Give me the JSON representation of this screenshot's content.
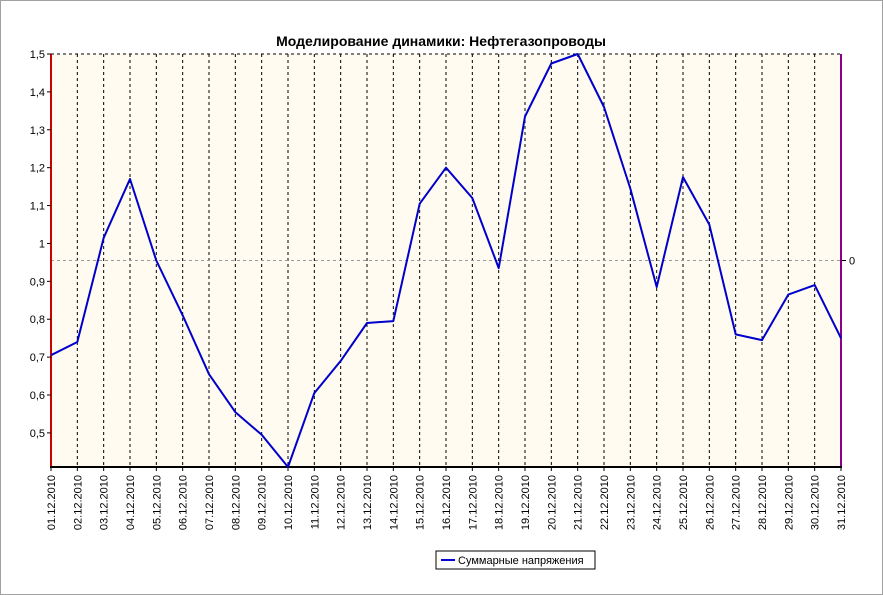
{
  "chart_data": {
    "type": "line",
    "title": "Моделирование динамики: Нефтегазопроводы",
    "xlabel": "",
    "ylabel": "",
    "ylim": [
      0.41,
      1.5
    ],
    "yticks": [
      "0,5",
      "0,6",
      "0,7",
      "0,8",
      "0,9",
      "1",
      "1,1",
      "1,2",
      "1,3",
      "1,4",
      "1,5"
    ],
    "ytick_values": [
      0.5,
      0.6,
      0.7,
      0.8,
      0.9,
      1.0,
      1.1,
      1.2,
      1.3,
      1.4,
      1.5
    ],
    "categories": [
      "01.12.2010",
      "02.12.2010",
      "03.12.2010",
      "04.12.2010",
      "05.12.2010",
      "06.12.2010",
      "07.12.2010",
      "08.12.2010",
      "09.12.2010",
      "10.12.2010",
      "11.12.2010",
      "12.12.2010",
      "13.12.2010",
      "14.12.2010",
      "15.12.2010",
      "16.12.2010",
      "17.12.2010",
      "18.12.2010",
      "19.12.2010",
      "20.12.2010",
      "21.12.2010",
      "22.12.2010",
      "23.12.2010",
      "24.12.2010",
      "25.12.2010",
      "26.12.2010",
      "27.12.2010",
      "28.12.2010",
      "29.12.2010",
      "30.12.2010",
      "31.12.2010"
    ],
    "series": [
      {
        "name": "Суммарные напряжения",
        "color": "#0000cc",
        "values": [
          0.705,
          0.74,
          1.015,
          1.17,
          0.955,
          0.81,
          0.655,
          0.555,
          0.495,
          0.41,
          0.605,
          0.69,
          0.79,
          0.795,
          1.105,
          1.2,
          1.12,
          0.935,
          1.335,
          1.475,
          1.5,
          1.36,
          1.145,
          0.885,
          1.175,
          1.05,
          0.76,
          0.745,
          0.865,
          0.89,
          0.75
        ]
      }
    ],
    "reference_line": {
      "value": 0.955,
      "label": "0"
    },
    "grid": true,
    "legend": "bottom-center",
    "colors": {
      "plot_bg": "#fffbf0",
      "left_axis": "#cc0000",
      "right_axis": "#8b008b",
      "line": "#0000cc",
      "grid": "#000000",
      "ref_line": "#999999"
    }
  }
}
